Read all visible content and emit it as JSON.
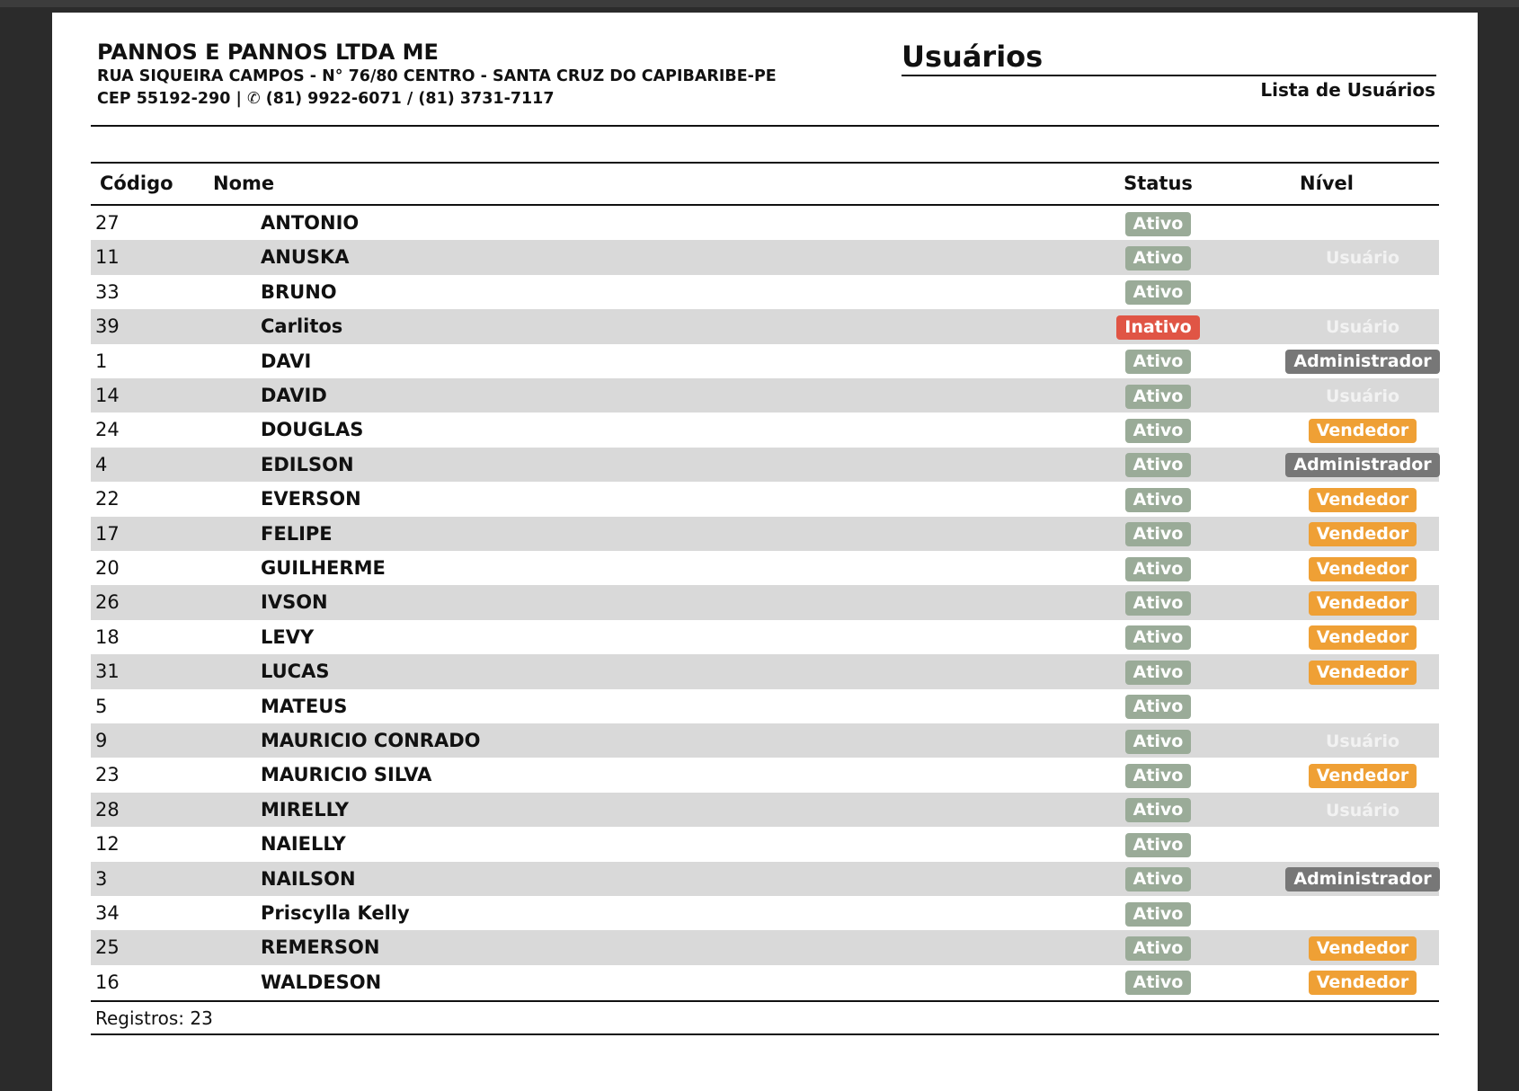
{
  "header": {
    "company": "PANNOS E PANNOS LTDA ME",
    "address": "RUA SIQUEIRA CAMPOS - N° 76/80 CENTRO - SANTA CRUZ DO CAPIBARIBE-PE",
    "contact": "CEP 55192-290  | ✆ (81) 9922-6071 / (81) 3731-7117",
    "title": "Usuários",
    "subtitle": "Lista de Usuários"
  },
  "table": {
    "columns": {
      "code": "Código",
      "name": "Nome",
      "status": "Status",
      "nivel": "Nível"
    },
    "rows": [
      {
        "code": "27",
        "name": "ANTONIO",
        "status": "Ativo",
        "nivel": ""
      },
      {
        "code": "11",
        "name": "ANUSKA",
        "status": "Ativo",
        "nivel": "Usuário"
      },
      {
        "code": "33",
        "name": "BRUNO",
        "status": "Ativo",
        "nivel": ""
      },
      {
        "code": "39",
        "name": "Carlitos",
        "status": "Inativo",
        "nivel": "Usuário"
      },
      {
        "code": "1",
        "name": "DAVI",
        "status": "Ativo",
        "nivel": "Administrador"
      },
      {
        "code": "14",
        "name": "DAVID",
        "status": "Ativo",
        "nivel": "Usuário"
      },
      {
        "code": "24",
        "name": "DOUGLAS",
        "status": "Ativo",
        "nivel": "Vendedor"
      },
      {
        "code": "4",
        "name": "EDILSON",
        "status": "Ativo",
        "nivel": "Administrador"
      },
      {
        "code": "22",
        "name": "EVERSON",
        "status": "Ativo",
        "nivel": "Vendedor"
      },
      {
        "code": "17",
        "name": "FELIPE",
        "status": "Ativo",
        "nivel": "Vendedor"
      },
      {
        "code": "20",
        "name": "GUILHERME",
        "status": "Ativo",
        "nivel": "Vendedor"
      },
      {
        "code": "26",
        "name": "IVSON",
        "status": "Ativo",
        "nivel": "Vendedor"
      },
      {
        "code": "18",
        "name": "LEVY",
        "status": "Ativo",
        "nivel": "Vendedor"
      },
      {
        "code": "31",
        "name": "LUCAS",
        "status": "Ativo",
        "nivel": "Vendedor"
      },
      {
        "code": "5",
        "name": "MATEUS",
        "status": "Ativo",
        "nivel": ""
      },
      {
        "code": "9",
        "name": "MAURICIO CONRADO",
        "status": "Ativo",
        "nivel": "Usuário"
      },
      {
        "code": "23",
        "name": "MAURICIO SILVA",
        "status": "Ativo",
        "nivel": "Vendedor"
      },
      {
        "code": "28",
        "name": "MIRELLY",
        "status": "Ativo",
        "nivel": "Usuário"
      },
      {
        "code": "12",
        "name": "NAIELLY",
        "status": "Ativo",
        "nivel": ""
      },
      {
        "code": "3",
        "name": "NAILSON",
        "status": "Ativo",
        "nivel": "Administrador"
      },
      {
        "code": "34",
        "name": "Priscylla Kelly",
        "status": "Ativo",
        "nivel": ""
      },
      {
        "code": "25",
        "name": "REMERSON",
        "status": "Ativo",
        "nivel": "Vendedor"
      },
      {
        "code": "16",
        "name": "WALDESON",
        "status": "Ativo",
        "nivel": "Vendedor"
      }
    ]
  },
  "footer": {
    "records": "Registros: 23"
  },
  "colors": {
    "Ativo": "#9aab98",
    "Inativo": "#e05545",
    "Administrador": "#777777",
    "Vendedor": "#efa035",
    "stripe": "#d9d9d9"
  }
}
